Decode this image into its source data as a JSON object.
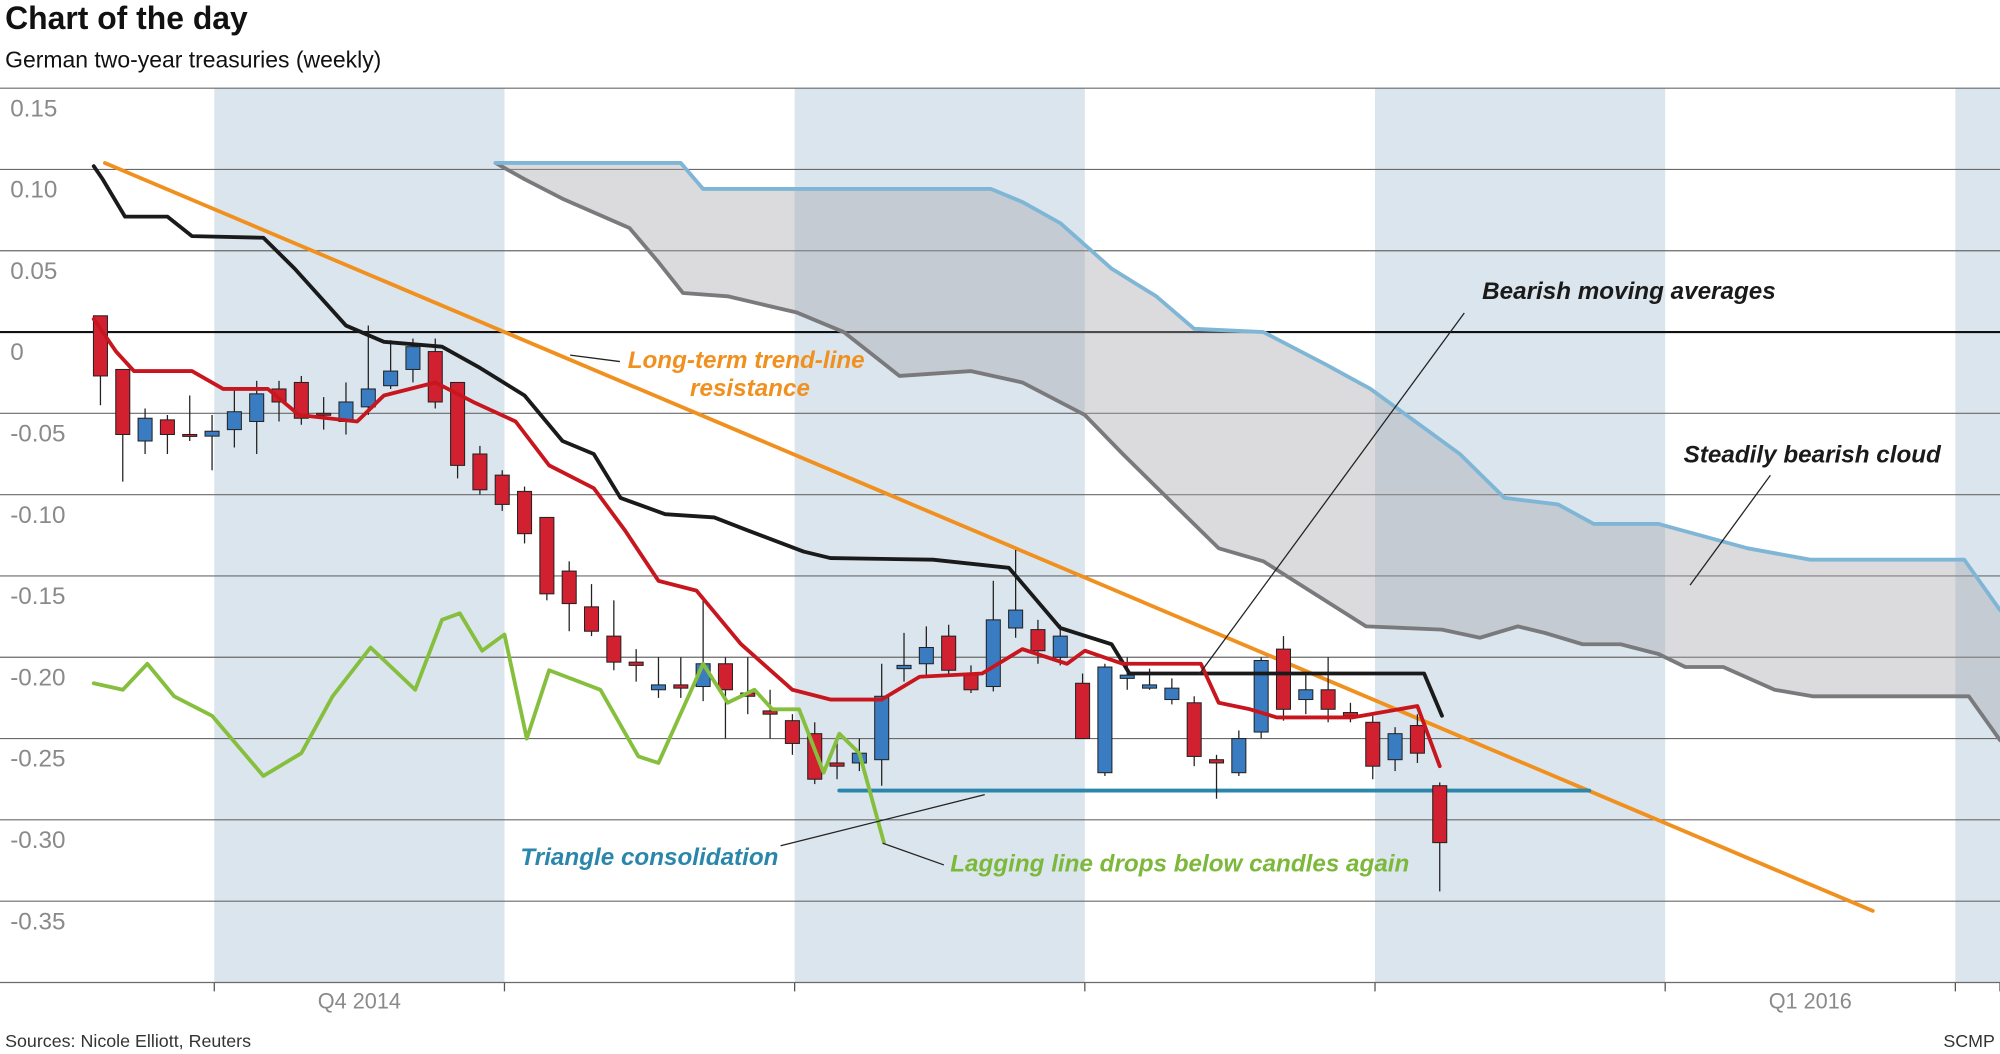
{
  "chart_data": {
    "type": "candlestick",
    "title": "Chart of the day",
    "subtitle": "German two-year treasuries (weekly)",
    "source": "Sources: Nicole Elliott, Reuters",
    "credit": "SCMP",
    "xlim": [
      -4.5,
      85.1
    ],
    "ylim": [
      -0.4,
      0.15
    ],
    "yticks": [
      0.15,
      {
        "value": 0.1,
        "label": "0.10"
      },
      0.05,
      0,
      -0.05,
      {
        "value": -0.1,
        "label": "-0.10"
      },
      -0.15,
      {
        "value": -0.2,
        "label": "-0.20"
      },
      -0.25,
      {
        "value": -0.3,
        "label": "-0.30"
      },
      -0.35
    ],
    "xticks": [
      {
        "value": 11.6,
        "label": "Q4 2014"
      },
      {
        "value": 76.6,
        "label": "Q1 2016"
      }
    ],
    "grid": true,
    "zero_line": true,
    "shading": [
      [
        5.1,
        18.1
      ],
      [
        31.1,
        44.1
      ],
      [
        57.1,
        70.1
      ],
      [
        83.1,
        85.1
      ]
    ],
    "shading_color": "#dbe5ed",
    "up_color": "#3a7cc2",
    "down_color": "#d1202f",
    "candles": {
      "open": [
        0.01,
        -0.023,
        -0.067,
        -0.054,
        -0.063,
        -0.064,
        -0.06,
        -0.055,
        -0.035,
        -0.031,
        -0.05,
        -0.055,
        -0.046,
        -0.033,
        -0.023,
        -0.012,
        -0.031,
        -0.075,
        -0.088,
        -0.098,
        -0.114,
        -0.147,
        -0.169,
        -0.187,
        -0.203,
        -0.22,
        -0.217,
        -0.218,
        -0.204,
        -0.222,
        -0.233,
        -0.239,
        -0.247,
        -0.265,
        -0.265,
        -0.263,
        -0.207,
        -0.204,
        -0.187,
        -0.21,
        -0.218,
        -0.182,
        -0.183,
        -0.2,
        -0.216,
        -0.271,
        -0.213,
        -0.219,
        -0.226,
        -0.228,
        -0.263,
        -0.271,
        -0.246,
        -0.195,
        -0.226,
        -0.22,
        -0.234,
        -0.24,
        -0.263,
        -0.242,
        -0.279
      ],
      "high": [
        0.01,
        -0.023,
        -0.047,
        -0.051,
        -0.039,
        -0.051,
        -0.035,
        -0.03,
        -0.03,
        -0.027,
        -0.04,
        -0.031,
        0.004,
        -0.005,
        -0.004,
        -0.004,
        -0.031,
        -0.07,
        -0.085,
        -0.095,
        -0.114,
        -0.141,
        -0.155,
        -0.165,
        -0.195,
        -0.2,
        -0.2,
        -0.165,
        -0.2,
        -0.2,
        -0.22,
        -0.235,
        -0.24,
        -0.25,
        -0.25,
        -0.204,
        -0.185,
        -0.181,
        -0.18,
        -0.205,
        -0.153,
        -0.134,
        -0.177,
        -0.18,
        -0.21,
        -0.204,
        -0.2,
        -0.207,
        -0.213,
        -0.224,
        -0.26,
        -0.245,
        -0.2,
        -0.187,
        -0.21,
        -0.2,
        -0.228,
        -0.236,
        -0.243,
        -0.235,
        -0.277
      ],
      "low": [
        -0.045,
        -0.092,
        -0.075,
        -0.075,
        -0.067,
        -0.085,
        -0.071,
        -0.075,
        -0.055,
        -0.057,
        -0.06,
        -0.063,
        -0.051,
        -0.035,
        -0.031,
        -0.047,
        -0.09,
        -0.1,
        -0.11,
        -0.13,
        -0.165,
        -0.184,
        -0.187,
        -0.208,
        -0.215,
        -0.225,
        -0.225,
        -0.227,
        -0.25,
        -0.235,
        -0.25,
        -0.26,
        -0.278,
        -0.275,
        -0.27,
        -0.279,
        -0.215,
        -0.212,
        -0.21,
        -0.222,
        -0.221,
        -0.188,
        -0.204,
        -0.205,
        -0.25,
        -0.273,
        -0.22,
        -0.22,
        -0.229,
        -0.267,
        -0.287,
        -0.273,
        -0.25,
        -0.239,
        -0.235,
        -0.24,
        -0.24,
        -0.275,
        -0.27,
        -0.265,
        -0.344
      ],
      "close": [
        -0.027,
        -0.063,
        -0.053,
        -0.063,
        -0.064,
        -0.061,
        -0.049,
        -0.038,
        -0.043,
        -0.053,
        -0.051,
        -0.043,
        -0.035,
        -0.024,
        -0.009,
        -0.043,
        -0.082,
        -0.097,
        -0.106,
        -0.124,
        -0.161,
        -0.167,
        -0.184,
        -0.203,
        -0.205,
        -0.217,
        -0.219,
        -0.204,
        -0.22,
        -0.224,
        -0.235,
        -0.253,
        -0.275,
        -0.267,
        -0.259,
        -0.224,
        -0.205,
        -0.194,
        -0.208,
        -0.22,
        -0.177,
        -0.171,
        -0.196,
        -0.187,
        -0.25,
        -0.206,
        -0.211,
        -0.217,
        -0.219,
        -0.261,
        -0.265,
        -0.25,
        -0.202,
        -0.232,
        -0.22,
        -0.232,
        -0.236,
        -0.267,
        -0.247,
        -0.259,
        -0.314
      ]
    },
    "cloud": {
      "edges": [
        1,
        0
      ],
      "color": "#a6a6ab"
    },
    "lines": [
      {
        "color": "#7a7a7d",
        "x": [
          17.7,
          19,
          20.7,
          23.7,
          25,
          26.1,
          28.1,
          31.2,
          33.3,
          35.8,
          39,
          41.3,
          44.1,
          45.8,
          47.5,
          50.1,
          52.1,
          54.4,
          56.7,
          60.1,
          61.8,
          63.5,
          64.7,
          66.4,
          68.1,
          69.8,
          71,
          72.7,
          75,
          76.7,
          83.7,
          85.1
        ],
        "values": [
          0.104,
          0.094,
          0.082,
          0.064,
          0.043,
          0.024,
          0.022,
          0.012,
          0,
          -0.027,
          -0.024,
          -0.031,
          -0.051,
          -0.075,
          -0.098,
          -0.133,
          -0.141,
          -0.161,
          -0.181,
          -0.183,
          -0.188,
          -0.181,
          -0.185,
          -0.192,
          -0.192,
          -0.198,
          -0.206,
          -0.206,
          -0.22,
          -0.224,
          -0.224,
          -0.251
        ]
      },
      {
        "color": "#7fb6d6",
        "x": [
          17.7,
          26,
          27,
          39.9,
          41.3,
          43,
          45.3,
          47.3,
          49,
          52.1,
          54.9,
          56.9,
          58.9,
          60.9,
          62.9,
          65.3,
          66.9,
          69.8,
          73.8,
          76.6,
          83.5,
          85.1
        ],
        "values": [
          0.104,
          0.104,
          0.088,
          0.088,
          0.08,
          0.067,
          0.039,
          0.022,
          0.002,
          0,
          -0.02,
          -0.035,
          -0.055,
          -0.075,
          -0.102,
          -0.106,
          -0.118,
          -0.118,
          -0.133,
          -0.14,
          -0.14,
          -0.171
        ]
      },
      {
        "color": "#f0901e",
        "x": [
          0.2,
          79.4
        ],
        "values": [
          0.104,
          -0.356
        ]
      },
      {
        "color": "#2a87ab",
        "x": [
          33.1,
          66.7
        ],
        "values": [
          -0.282,
          -0.282
        ]
      },
      {
        "color": "#1a1a1a",
        "x": [
          -0.3,
          0.1,
          1.1,
          3,
          4.1,
          7.3,
          8.7,
          11,
          12.7,
          15.3,
          17,
          19,
          20.7,
          22.1,
          23.3,
          25.3,
          27.5,
          29,
          31.5,
          32.7,
          37.3,
          40.7,
          43,
          45.3,
          46.1,
          49.3,
          59.3,
          60.1
        ],
        "values": [
          0.102,
          0.094,
          0.071,
          0.071,
          0.059,
          0.058,
          0.039,
          0.004,
          -0.006,
          -0.009,
          -0.022,
          -0.039,
          -0.067,
          -0.075,
          -0.102,
          -0.112,
          -0.114,
          -0.122,
          -0.135,
          -0.139,
          -0.14,
          -0.145,
          -0.182,
          -0.192,
          -0.21,
          -0.21,
          -0.21,
          -0.236
        ]
      },
      {
        "color": "#c8161f",
        "x": [
          -0.3,
          0.7,
          1.5,
          4.1,
          5.5,
          7.5,
          8.9,
          11.5,
          12.7,
          15,
          16.7,
          18.6,
          20.1,
          22.1,
          23.5,
          25,
          26.7,
          28.7,
          31,
          32.7,
          35,
          36.7,
          39.5,
          41.3,
          43.3,
          44.1,
          45.8,
          49.3,
          50.1,
          51.5,
          52.7,
          56.1,
          59,
          60
        ],
        "values": [
          0.008,
          -0.012,
          -0.024,
          -0.024,
          -0.035,
          -0.035,
          -0.051,
          -0.055,
          -0.039,
          -0.031,
          -0.043,
          -0.055,
          -0.082,
          -0.096,
          -0.122,
          -0.153,
          -0.159,
          -0.192,
          -0.22,
          -0.226,
          -0.226,
          -0.212,
          -0.21,
          -0.195,
          -0.204,
          -0.196,
          -0.204,
          -0.204,
          -0.228,
          -0.232,
          -0.237,
          -0.237,
          -0.23,
          -0.267
        ]
      },
      {
        "color": "#86bf3e",
        "x": [
          -0.3,
          1,
          2.1,
          3.3,
          5,
          7.3,
          9,
          10.4,
          12.1,
          14.1,
          15.3,
          16.1,
          17.1,
          18.1,
          19.1,
          20.1,
          22.4,
          24.1,
          25,
          27,
          28.1,
          29.3,
          30.1,
          31.3,
          32.4,
          33.1,
          34,
          35.1
        ],
        "values": [
          -0.216,
          -0.22,
          -0.204,
          -0.224,
          -0.236,
          -0.273,
          -0.259,
          -0.224,
          -0.194,
          -0.22,
          -0.177,
          -0.173,
          -0.196,
          -0.186,
          -0.25,
          -0.208,
          -0.22,
          -0.261,
          -0.265,
          -0.204,
          -0.228,
          -0.22,
          -0.232,
          -0.232,
          -0.271,
          -0.247,
          -0.259,
          -0.314
        ]
      }
    ],
    "annotations": [
      {
        "lines": [
          "Bearish moving averages"
        ],
        "color": "#1a1a1a"
      },
      {
        "lines": [
          "Long-term trend-line",
          "resistance"
        ],
        "color": "#f0901e"
      },
      {
        "lines": [
          "Steadily bearish cloud"
        ],
        "color": "#1a1a1a"
      },
      {
        "lines": [
          "Triangle consolidation"
        ],
        "color": "#2a87ab"
      },
      {
        "lines": [
          "Lagging line drops below candles again"
        ],
        "color": "#7cb83a"
      }
    ]
  }
}
